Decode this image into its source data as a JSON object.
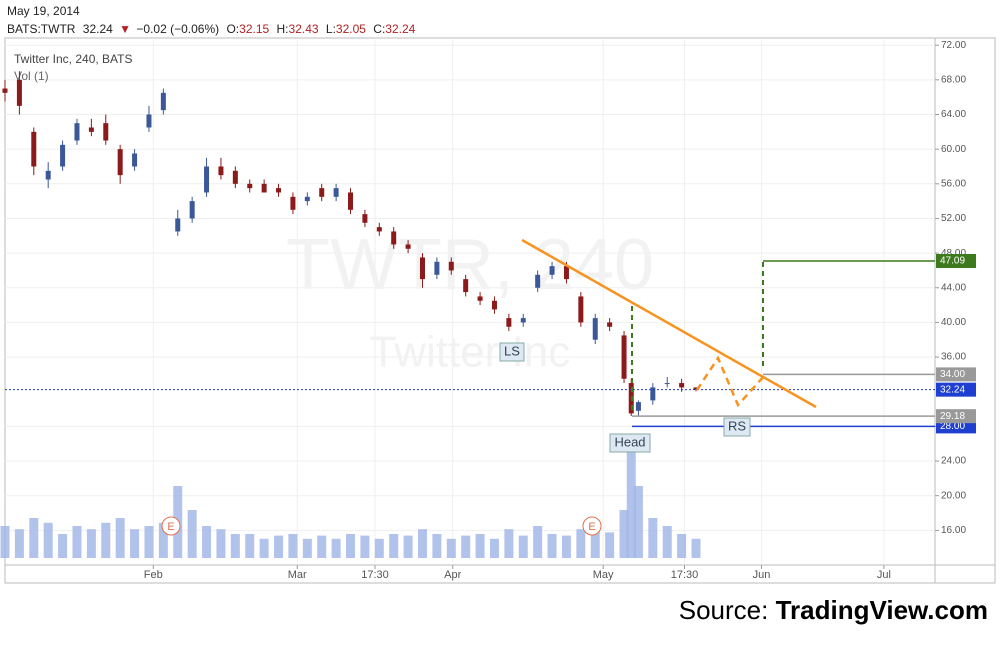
{
  "header": {
    "date": "May 19, 2014",
    "symbol": "BATS:TWTR",
    "last": 32.24,
    "arrow": "▼",
    "change": "−0.02 (−0.06%)",
    "o_label": "O:",
    "open": 32.15,
    "h_label": "H:",
    "high": 32.43,
    "l_label": "L:",
    "low": 32.05,
    "c_label": "C:",
    "close": 32.24
  },
  "chart_data": {
    "type": "candlestick",
    "legend": "Twitter Inc, 240, BATS",
    "volume_label": "Vol (1)",
    "watermark": "TWTR, 240",
    "watermark_name": "Twitter Inc",
    "up_color": "#3b5998",
    "down_color": "#8b1a1a",
    "volume_color": "#9fb4e6",
    "x": [
      0,
      2,
      4,
      6,
      8,
      10,
      12,
      14,
      16,
      18,
      20,
      22,
      24,
      26,
      28,
      30,
      32,
      34,
      36,
      38,
      40,
      42,
      44,
      46,
      48,
      50,
      52,
      54,
      56,
      58,
      60,
      62,
      64,
      66,
      68,
      70,
      72,
      74,
      76,
      78,
      80,
      82,
      84,
      86,
      87,
      88,
      90,
      92,
      94,
      96
    ],
    "open": [
      67,
      68,
      62,
      56.5,
      58,
      61,
      62.5,
      63,
      60,
      58,
      62.5,
      64.5,
      50.5,
      52,
      55,
      58,
      57.5,
      56,
      56,
      55.5,
      54.5,
      54,
      55.5,
      54.5,
      55,
      52.5,
      51,
      50.5,
      49,
      47.5,
      45.5,
      47,
      45,
      43,
      42.5,
      40.5,
      40,
      44,
      45.5,
      46.5,
      43,
      38,
      40,
      38.5,
      33,
      29.8,
      31,
      33,
      33,
      32.5
    ],
    "high": [
      68,
      69,
      62.5,
      58.5,
      61,
      63.5,
      63.5,
      64,
      60.5,
      60,
      65,
      67,
      53,
      54.5,
      59,
      59,
      58,
      56.5,
      56.5,
      56,
      55,
      55,
      56,
      56,
      55.5,
      53,
      51.5,
      51,
      49.5,
      48,
      47.5,
      47.5,
      45.5,
      43.5,
      43,
      41,
      41,
      46,
      47,
      47,
      43.5,
      41,
      40.5,
      39,
      33.5,
      31,
      33,
      33.7,
      33.5,
      32.43
    ],
    "low": [
      65.5,
      64,
      57,
      55.5,
      57.5,
      60.5,
      61.5,
      60.5,
      56,
      57.5,
      62,
      64,
      50,
      51.5,
      54.5,
      56.5,
      55.5,
      55,
      55,
      54.5,
      52.5,
      53.5,
      54,
      54,
      52.5,
      51,
      50,
      48.5,
      48,
      44,
      45,
      45.5,
      43,
      42,
      41,
      39,
      39.5,
      43.5,
      45,
      44.5,
      39.5,
      37.5,
      39,
      33,
      29.2,
      29.2,
      30.5,
      32.5,
      32,
      32.05
    ],
    "close": [
      66.5,
      65,
      58,
      57.5,
      60.5,
      63,
      62,
      61,
      57,
      59.5,
      64,
      66.5,
      52,
      54,
      58,
      57,
      56,
      55.5,
      55,
      55,
      53,
      54.5,
      54.5,
      55.5,
      53,
      51.5,
      50.5,
      49,
      48.5,
      45,
      47,
      46,
      43.5,
      42.5,
      41.5,
      39.5,
      40.5,
      45.5,
      46.5,
      45,
      40,
      40.5,
      39.5,
      33.5,
      29.5,
      30.8,
      32.5,
      33,
      32.5,
      32.24
    ],
    "volume": [
      20,
      18,
      25,
      22,
      15,
      20,
      18,
      22,
      25,
      18,
      20,
      22,
      45,
      30,
      20,
      18,
      15,
      15,
      12,
      14,
      15,
      12,
      14,
      12,
      15,
      14,
      12,
      15,
      14,
      18,
      15,
      12,
      14,
      15,
      12,
      18,
      14,
      20,
      15,
      14,
      18,
      22,
      16,
      30,
      70,
      45,
      25,
      20,
      15,
      12
    ],
    "xlim": [
      0,
      129.2
    ],
    "ylim": [
      12,
      72.6
    ],
    "xticks": [
      {
        "value": 20.6,
        "label": "Feb"
      },
      {
        "value": 40.6,
        "label": "Mar"
      },
      {
        "value": 51.4,
        "label": "17:30"
      },
      {
        "value": 62.2,
        "label": "Apr"
      },
      {
        "value": 83.1,
        "label": "May"
      },
      {
        "value": 94.4,
        "label": "17:30"
      },
      {
        "value": 105.1,
        "label": "Jun"
      },
      {
        "value": 122.1,
        "label": "Jul"
      }
    ],
    "yticks": [
      {
        "value": 72,
        "label": "72.00"
      },
      {
        "value": 68,
        "label": "68.00"
      },
      {
        "value": 64,
        "label": "64.00"
      },
      {
        "value": 60,
        "label": "60.00"
      },
      {
        "value": 56,
        "label": "56.00"
      },
      {
        "value": 52,
        "label": "52.00"
      },
      {
        "value": 48,
        "label": "48.00"
      },
      {
        "value": 44,
        "label": "44.00"
      },
      {
        "value": 40,
        "label": "40.00"
      },
      {
        "value": 36,
        "label": "36.00"
      },
      {
        "value": 28,
        "label": "28.00"
      },
      {
        "value": 24,
        "label": "24.00"
      },
      {
        "value": 20,
        "label": "20.00"
      },
      {
        "value": 16,
        "label": "16.00"
      }
    ],
    "grid": true,
    "price_labels": [
      {
        "value": 47.09,
        "color": "#3d7a1e"
      },
      {
        "value": {
          "value": 34,
          "label": "34.00"
        },
        "color": "#999999"
      },
      {
        "value": 32.24,
        "color": "#1e3fd0"
      },
      {
        "value": {
          "value": 28,
          "label": "28.00"
        },
        "color": "#1e3fd0"
      },
      {
        "value": 29.18,
        "color": "#999999"
      }
    ],
    "annotations": [
      "LS",
      "Head",
      "RS"
    ],
    "earnings": [
      "E",
      "E"
    ]
  },
  "source": {
    "prefix": "Source:",
    "name": "TradingView.com"
  }
}
